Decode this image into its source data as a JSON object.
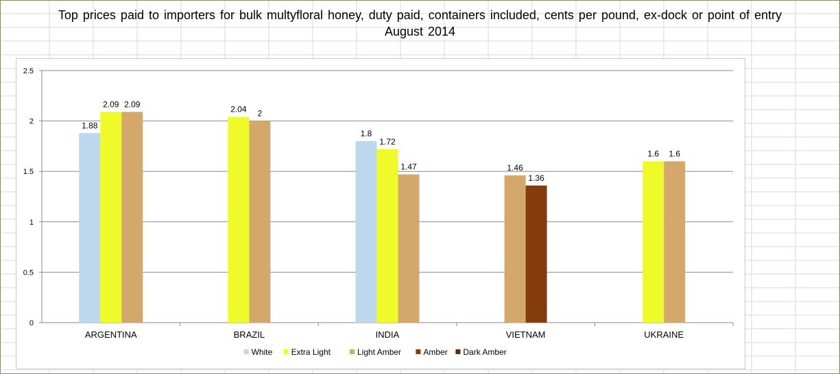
{
  "chart_data": {
    "type": "bar",
    "title": "Top prices paid to importers for bulk multyfloral honey, duty paid, containers included, cents per pound, ex-dock or point of entry",
    "subtitle": "August 2014",
    "xlabel": "",
    "ylabel": "",
    "ylim": [
      0,
      2.5
    ],
    "yticks": [
      0,
      0.5,
      1,
      1.5,
      2,
      2.5
    ],
    "ytick_labels": [
      "0",
      "0.5",
      "1",
      "1.5",
      "2",
      "2.5"
    ],
    "grid": true,
    "legend_position": "bottom",
    "categories": [
      "ARGENTINA",
      "BRAZIL",
      "INDIA",
      "VIETNAM",
      "UKRAINE"
    ],
    "series": [
      {
        "name": "White",
        "color": "#bdd7ee",
        "values": [
          1.88,
          null,
          1.8,
          null,
          null
        ],
        "labels": [
          "1.88",
          null,
          "1.8",
          null,
          null
        ]
      },
      {
        "name": "Extra Light",
        "color": "#eefa2a",
        "values": [
          2.09,
          2.04,
          1.72,
          null,
          1.6
        ],
        "labels": [
          "2.09",
          "2.04",
          "1.72",
          null,
          "1.6"
        ]
      },
      {
        "name": "Light Amber",
        "color": "#d4a76a",
        "values": [
          2.09,
          2.0,
          1.47,
          1.46,
          1.6
        ],
        "labels": [
          "2.09",
          "2",
          "1.47",
          "1.46",
          "1.6"
        ]
      },
      {
        "name": "Amber",
        "color": "#843c0c",
        "values": [
          null,
          null,
          null,
          1.36,
          null
        ],
        "labels": [
          null,
          null,
          null,
          "1.36",
          null
        ]
      },
      {
        "name": "Dark Amber",
        "color": "#5c2a08",
        "values": [
          null,
          null,
          null,
          null,
          null
        ],
        "labels": [
          null,
          null,
          null,
          null,
          null
        ]
      }
    ]
  }
}
